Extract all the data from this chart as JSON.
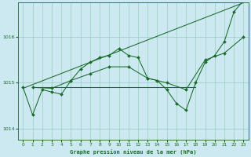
{
  "title": "Graphe pression niveau de la mer (hPa)",
  "bg_color": "#cce8f0",
  "grid_color": "#99ccbb",
  "line_color": "#1a6b2a",
  "ylim": [
    1013.75,
    1016.75
  ],
  "yticks": [
    1014,
    1015,
    1016
  ],
  "xlim": [
    -0.5,
    23.5
  ],
  "xticks": [
    0,
    1,
    2,
    3,
    4,
    5,
    6,
    7,
    8,
    9,
    10,
    11,
    12,
    13,
    14,
    15,
    16,
    17,
    18,
    19,
    20,
    21,
    22,
    23
  ],
  "series": {
    "line_main": {
      "x": [
        0,
        1,
        2,
        3,
        4,
        5,
        6,
        7,
        8,
        9,
        10,
        11,
        12,
        13,
        14,
        15,
        16,
        17,
        18,
        19,
        20,
        21,
        22,
        23
      ],
      "y": [
        1014.9,
        1014.3,
        1014.85,
        1014.8,
        1014.75,
        1015.05,
        1015.3,
        1015.45,
        1015.55,
        1015.6,
        1015.75,
        1015.6,
        1015.55,
        1015.1,
        1015.05,
        1014.85,
        1014.55,
        1014.4,
        1015.0,
        1015.45,
        1015.6,
        1015.9,
        1016.55,
        1016.8
      ]
    },
    "line_flat": {
      "x": [
        1,
        18
      ],
      "y": [
        1014.9,
        1014.9
      ]
    },
    "line_trend": {
      "x": [
        0,
        23
      ],
      "y": [
        1014.88,
        1016.75
      ]
    },
    "line_smooth": {
      "x": [
        1,
        3,
        5,
        7,
        9,
        11,
        13,
        15,
        17,
        19,
        21,
        23
      ],
      "y": [
        1014.9,
        1014.88,
        1015.05,
        1015.2,
        1015.35,
        1015.35,
        1015.1,
        1015.0,
        1014.85,
        1015.5,
        1015.65,
        1016.0
      ]
    }
  }
}
